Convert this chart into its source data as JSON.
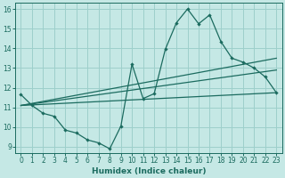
{
  "xlabel": "Humidex (Indice chaleur)",
  "background_color": "#c5e8e5",
  "grid_color": "#9dcfcb",
  "line_color": "#1b6b5f",
  "xlim": [
    -0.5,
    23.5
  ],
  "ylim": [
    8.7,
    16.3
  ],
  "xticks": [
    0,
    1,
    2,
    3,
    4,
    5,
    6,
    7,
    8,
    9,
    10,
    11,
    12,
    13,
    14,
    15,
    16,
    17,
    18,
    19,
    20,
    21,
    22,
    23
  ],
  "yticks": [
    9,
    10,
    11,
    12,
    13,
    14,
    15,
    16
  ],
  "series1_x": [
    0,
    1,
    2,
    3,
    4,
    5,
    6,
    7,
    8,
    9,
    10,
    11,
    12,
    13,
    14,
    15,
    16,
    17,
    18,
    19,
    20,
    21,
    22,
    23
  ],
  "series1_y": [
    11.65,
    11.1,
    10.7,
    10.55,
    9.85,
    9.7,
    9.35,
    9.2,
    8.9,
    10.05,
    13.2,
    11.45,
    11.7,
    13.95,
    15.3,
    16.0,
    15.25,
    15.7,
    14.35,
    13.5,
    13.3,
    13.0,
    12.55,
    11.75
  ],
  "trend1_x": [
    0,
    23
  ],
  "trend1_y": [
    11.1,
    11.75
  ],
  "trend2_x": [
    0,
    23
  ],
  "trend2_y": [
    11.1,
    12.9
  ],
  "trend3_x": [
    0,
    23
  ],
  "trend3_y": [
    11.1,
    13.5
  ]
}
